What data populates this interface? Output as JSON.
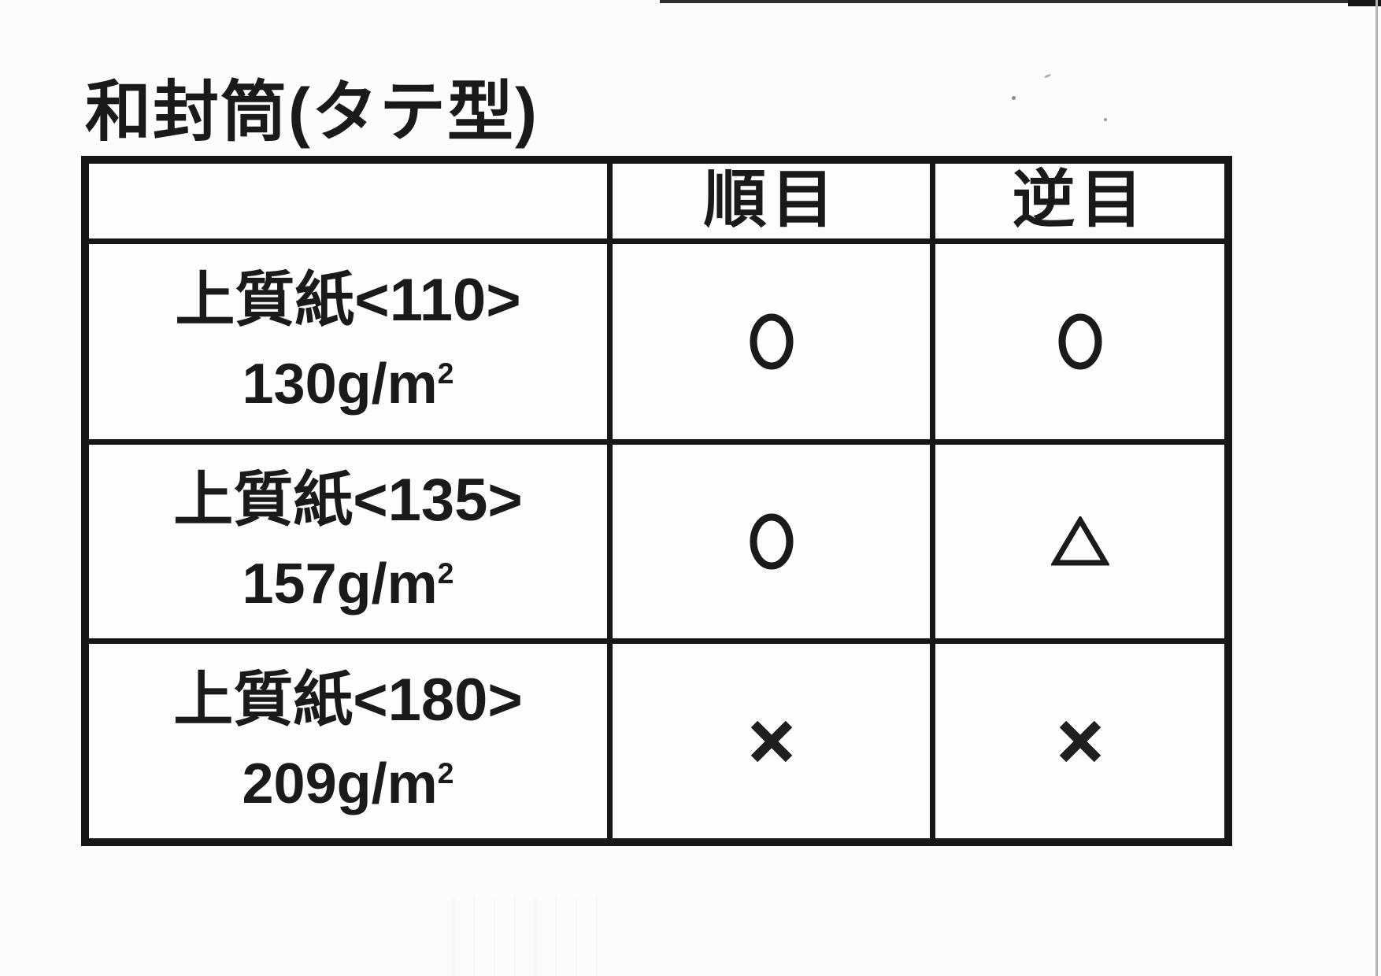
{
  "title": "和封筒(タテ型)",
  "table": {
    "columns": {
      "paper": "",
      "jun": "順目",
      "gyaku": "逆目"
    },
    "rows": [
      {
        "paper": "上質紙<110>",
        "weight_main": "130g/m",
        "weight_sup": "2",
        "jun": "○",
        "gyaku": "○"
      },
      {
        "paper": "上質紙<135>",
        "weight_main": "157g/m",
        "weight_sup": "2",
        "jun": "○",
        "gyaku": "△"
      },
      {
        "paper": "上質紙<180>",
        "weight_main": "209g/m",
        "weight_sup": "2",
        "jun": "×",
        "gyaku": "×"
      }
    ]
  },
  "marks": {
    "circle_meaning": "○",
    "triangle_meaning": "△",
    "cross_meaning": "×"
  },
  "colors": {
    "ink": "#1a1a1a",
    "border": "#161616",
    "paper_background": "#fcfcfc"
  }
}
